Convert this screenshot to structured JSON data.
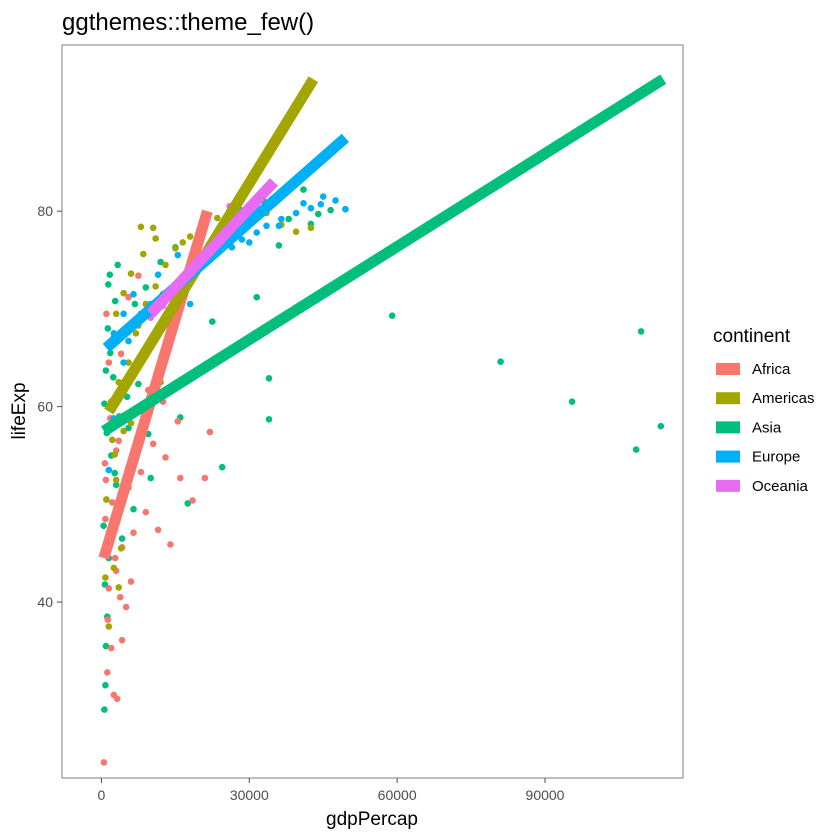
{
  "title": "ggthemes::theme_few()",
  "chart_data": {
    "type": "scatter",
    "xlabel": "gdpPercap",
    "ylabel": "lifeExp",
    "xlim": [
      -8000,
      118000
    ],
    "ylim": [
      22,
      97
    ],
    "x_ticks": [
      0,
      30000,
      60000,
      90000
    ],
    "x_tick_labels": [
      "0",
      "30000",
      "60000",
      "90000"
    ],
    "y_ticks": [
      40,
      60,
      80
    ],
    "y_tick_labels": [
      "40",
      "60",
      "80"
    ],
    "grid": false,
    "legend": {
      "title": "continent",
      "position": "right",
      "entries": [
        "Africa",
        "Americas",
        "Asia",
        "Europe",
        "Oceania"
      ]
    },
    "colors": {
      "Africa": "#F8766D",
      "Americas": "#A3A500",
      "Asia": "#00BF7D",
      "Europe": "#00B0F6",
      "Oceania": "#E76BF3"
    },
    "fit_lines": [
      {
        "name": "Africa",
        "x": [
          500,
          21500
        ],
        "y": [
          44.5,
          80.0
        ]
      },
      {
        "name": "Americas",
        "x": [
          1500,
          43000
        ],
        "y": [
          59.5,
          93.5
        ]
      },
      {
        "name": "Asia",
        "x": [
          500,
          114000
        ],
        "y": [
          57.5,
          93.5
        ]
      },
      {
        "name": "Europe",
        "x": [
          1000,
          49500
        ],
        "y": [
          66.0,
          87.5
        ]
      },
      {
        "name": "Oceania",
        "x": [
          10000,
          35000
        ],
        "y": [
          69.5,
          83.0
        ]
      }
    ],
    "series": [
      {
        "name": "Asia",
        "points": [
          [
            59000,
            69.3
          ],
          [
            81000,
            64.6
          ],
          [
            95500,
            60.5
          ],
          [
            108500,
            55.6
          ],
          [
            109500,
            67.7
          ],
          [
            113500,
            58.0
          ],
          [
            34000,
            58.7
          ],
          [
            34000,
            62.9
          ],
          [
            24500,
            53.8
          ],
          [
            31500,
            71.2
          ],
          [
            22500,
            68.7
          ],
          [
            17500,
            50.1
          ],
          [
            10000,
            52.7
          ],
          [
            6500,
            49.5
          ],
          [
            4200,
            46.5
          ],
          [
            600,
            29
          ],
          [
            800,
            31.5
          ],
          [
            900,
            35.5
          ],
          [
            1200,
            38.5
          ],
          [
            700,
            41.8
          ],
          [
            1500,
            44.5
          ],
          [
            2300,
            47.2
          ],
          [
            3000,
            52
          ],
          [
            2000,
            55
          ],
          [
            1100,
            57.3
          ],
          [
            3600,
            59
          ],
          [
            5200,
            61
          ],
          [
            2400,
            63
          ],
          [
            1800,
            65.5
          ],
          [
            4000,
            67.3
          ],
          [
            6800,
            70.5
          ],
          [
            1400,
            72.5
          ],
          [
            9000,
            72.2
          ],
          [
            12000,
            74.8
          ],
          [
            15000,
            76.3
          ],
          [
            20000,
            77.8
          ],
          [
            28000,
            80.2
          ],
          [
            33000,
            81
          ],
          [
            38000,
            79.2
          ],
          [
            41000,
            82.2
          ],
          [
            44000,
            79.7
          ],
          [
            46500,
            80.1
          ],
          [
            49500,
            80.2
          ],
          [
            42500,
            78.7
          ],
          [
            36000,
            76.5
          ],
          [
            16000,
            58.9
          ],
          [
            9500,
            57.2
          ],
          [
            7500,
            62.3
          ],
          [
            5500,
            57.8
          ],
          [
            2700,
            53.2
          ],
          [
            1000,
            50.5
          ],
          [
            450,
            47.8
          ],
          [
            1300,
            68
          ],
          [
            2800,
            70.8
          ],
          [
            600,
            60.3
          ],
          [
            900,
            63.7
          ],
          [
            1700,
            73.5
          ],
          [
            3300,
            74.5
          ]
        ]
      },
      {
        "name": "Africa",
        "points": [
          [
            500,
            23.6
          ],
          [
            2500,
            30.5
          ],
          [
            3200,
            30.1
          ],
          [
            1200,
            32.8
          ],
          [
            2000,
            35.3
          ],
          [
            4200,
            36.1
          ],
          [
            5000,
            39.5
          ],
          [
            1500,
            41.4
          ],
          [
            3000,
            43.2
          ],
          [
            4200,
            45.6
          ],
          [
            6500,
            47.1
          ],
          [
            800,
            48.5
          ],
          [
            2200,
            50.2
          ],
          [
            5500,
            51.7
          ],
          [
            9000,
            49.2
          ],
          [
            11500,
            47.4
          ],
          [
            14000,
            45.9
          ],
          [
            8000,
            53.3
          ],
          [
            10500,
            56.2
          ],
          [
            13000,
            54.8
          ],
          [
            16000,
            52.7
          ],
          [
            18500,
            50.4
          ],
          [
            21000,
            52.7
          ],
          [
            22000,
            57.4
          ],
          [
            15500,
            58.5
          ],
          [
            12500,
            60.5
          ],
          [
            9500,
            61.7
          ],
          [
            6500,
            63.2
          ],
          [
            4000,
            65.4
          ],
          [
            2500,
            67.1
          ],
          [
            1000,
            69.5
          ],
          [
            5500,
            71.2
          ],
          [
            7500,
            73.4
          ],
          [
            3500,
            56.5
          ],
          [
            1800,
            58.8
          ],
          [
            700,
            54.2
          ],
          [
            2800,
            44.5
          ],
          [
            1300,
            38.2
          ],
          [
            3800,
            40.5
          ],
          [
            6000,
            42.1
          ],
          [
            800,
            45.2
          ],
          [
            2000,
            60.5
          ],
          [
            4500,
            62.5
          ],
          [
            1500,
            64.5
          ],
          [
            900,
            52.5
          ],
          [
            3000,
            55.5
          ]
        ]
      },
      {
        "name": "Americas",
        "points": [
          [
            1500,
            37.5
          ],
          [
            3500,
            41.5
          ],
          [
            2500,
            43.5
          ],
          [
            4000,
            45.5
          ],
          [
            2000,
            47.5
          ],
          [
            1000,
            50.5
          ],
          [
            3000,
            52.5
          ],
          [
            6500,
            54.5
          ],
          [
            2200,
            56.6
          ],
          [
            4500,
            57.5
          ],
          [
            2000,
            60.5
          ],
          [
            3500,
            62.5
          ],
          [
            5500,
            64.5
          ],
          [
            1500,
            66.3
          ],
          [
            7000,
            67.5
          ],
          [
            3000,
            69.5
          ],
          [
            9000,
            70.5
          ],
          [
            4500,
            71.6
          ],
          [
            11000,
            72.3
          ],
          [
            6000,
            73.6
          ],
          [
            13000,
            74.5
          ],
          [
            8500,
            75.6
          ],
          [
            15000,
            76.2
          ],
          [
            11000,
            77.2
          ],
          [
            18000,
            77.4
          ],
          [
            8000,
            78.4
          ],
          [
            10500,
            78.3
          ],
          [
            16500,
            76.8
          ],
          [
            20500,
            78.5
          ],
          [
            23500,
            79.3
          ],
          [
            26500,
            78.2
          ],
          [
            30500,
            78.9
          ],
          [
            33500,
            79.8
          ],
          [
            36500,
            78.6
          ],
          [
            39500,
            77.9
          ],
          [
            42500,
            78.3
          ],
          [
            12000,
            62.5
          ],
          [
            6000,
            58.3
          ],
          [
            7500,
            68.3
          ],
          [
            2700,
            55.1
          ],
          [
            1200,
            45.5
          ],
          [
            800,
            42.5
          ]
        ]
      },
      {
        "name": "Europe",
        "points": [
          [
            1500,
            53.5
          ],
          [
            2500,
            58.8
          ],
          [
            3500,
            61.5
          ],
          [
            4500,
            64.5
          ],
          [
            5500,
            66.7
          ],
          [
            2500,
            67.5
          ],
          [
            7000,
            68.5
          ],
          [
            8000,
            69.5
          ],
          [
            10000,
            70.5
          ],
          [
            12500,
            71.5
          ],
          [
            14500,
            72.2
          ],
          [
            17000,
            73.3
          ],
          [
            19500,
            74.3
          ],
          [
            21500,
            75.2
          ],
          [
            23500,
            75.7
          ],
          [
            26500,
            76.3
          ],
          [
            28500,
            77.1
          ],
          [
            31500,
            77.8
          ],
          [
            33500,
            78.5
          ],
          [
            36500,
            79.2
          ],
          [
            39500,
            79.8
          ],
          [
            42500,
            80.3
          ],
          [
            44500,
            80.7
          ],
          [
            47500,
            81.1
          ],
          [
            49500,
            80.2
          ],
          [
            29500,
            79.5
          ],
          [
            25500,
            78.2
          ],
          [
            20500,
            77.5
          ],
          [
            15500,
            75.5
          ],
          [
            11500,
            73.5
          ],
          [
            6500,
            71.5
          ],
          [
            4500,
            69.5
          ],
          [
            36000,
            78.5
          ],
          [
            30000,
            76.8
          ],
          [
            18000,
            70.5
          ],
          [
            9000,
            65.2
          ],
          [
            41000,
            80.8
          ],
          [
            45000,
            81.5
          ]
        ]
      },
      {
        "name": "Oceania",
        "points": [
          [
            10000,
            69.1
          ],
          [
            12500,
            70.3
          ],
          [
            14500,
            71.1
          ],
          [
            17000,
            72.5
          ],
          [
            19500,
            73.8
          ],
          [
            22000,
            75.2
          ],
          [
            24500,
            76.3
          ],
          [
            27000,
            77.6
          ],
          [
            29500,
            78.8
          ],
          [
            32000,
            80.2
          ],
          [
            34500,
            81.2
          ],
          [
            21000,
            79.2
          ],
          [
            26000,
            80.5
          ]
        ]
      }
    ]
  }
}
